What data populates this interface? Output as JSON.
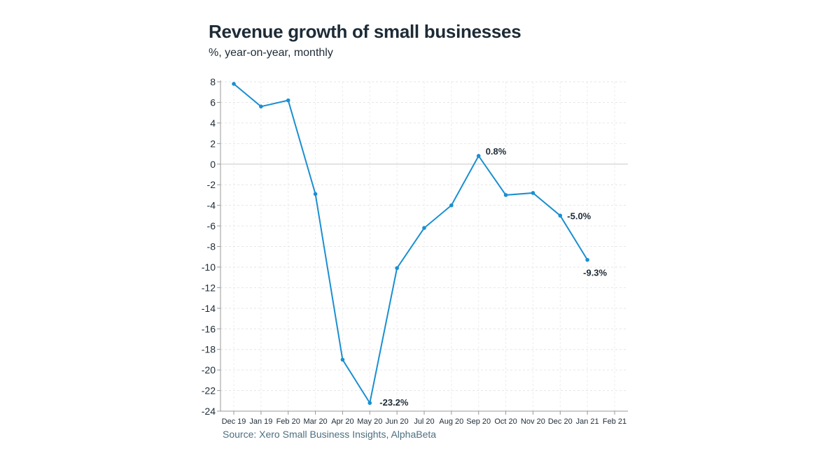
{
  "chart_data": {
    "type": "line",
    "title": "Revenue growth of small businesses",
    "subtitle": "%, year-on-year, monthly",
    "source": "Source: Xero Small Business Insights, AlphaBeta",
    "xlabel": "",
    "ylabel": "",
    "ylim": [
      -24,
      8
    ],
    "yticks": [
      8,
      6,
      4,
      2,
      0,
      -2,
      -4,
      -6,
      -8,
      -10,
      -12,
      -14,
      -16,
      -18,
      -20,
      -22,
      -24
    ],
    "categories": [
      "Dec 19",
      "Jan 19",
      "Feb 20",
      "Mar 20",
      "Apr 20",
      "May 20",
      "Jun 20",
      "Jul 20",
      "Aug 20",
      "Sep 20",
      "Oct 20",
      "Nov 20",
      "Dec 20",
      "Jan 21",
      "Feb 21"
    ],
    "grid": true,
    "series": [
      {
        "name": "Revenue growth",
        "color": "#1a8fd1",
        "values": [
          7.8,
          5.6,
          6.2,
          -2.9,
          -19.0,
          -23.2,
          -10.1,
          -6.2,
          -4.0,
          0.8,
          -3.0,
          -2.8,
          -5.0,
          -9.3,
          null
        ]
      }
    ],
    "annotations": [
      {
        "index": 5,
        "text": "-23.2%"
      },
      {
        "index": 9,
        "text": "0.8%"
      },
      {
        "index": 12,
        "text": "-5.0%"
      },
      {
        "index": 13,
        "text": "-9.3%"
      }
    ]
  }
}
